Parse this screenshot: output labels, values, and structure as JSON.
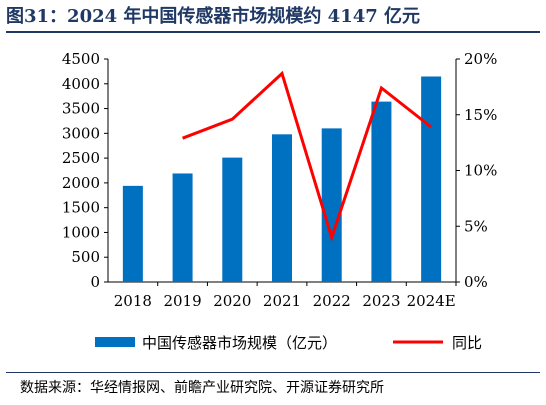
{
  "title": "图31：2024 年中国传感器市场规模约 4147 亿元",
  "source": "数据来源：华经情报网、前瞻产业研究院、开源证券研究所",
  "colors": {
    "bar": "#0070c0",
    "line": "#ff0000",
    "title": "#1f3864"
  },
  "chart_data": {
    "type": "bar",
    "categories": [
      "2018",
      "2019",
      "2020",
      "2021",
      "2022",
      "2023",
      "2024E"
    ],
    "series": [
      {
        "name": "中国传感器市场规模（亿元）",
        "type": "bar",
        "axis": "left",
        "values": [
          1940,
          2190,
          2510,
          2980,
          3100,
          3640,
          4147
        ]
      },
      {
        "name": "同比",
        "type": "line",
        "axis": "right",
        "values": [
          null,
          12.9,
          14.6,
          18.7,
          4.0,
          17.4,
          13.9
        ]
      }
    ],
    "y_left": {
      "min": 0,
      "max": 4500,
      "ticks": [
        "0",
        "500",
        "1000",
        "1500",
        "2000",
        "2500",
        "3000",
        "3500",
        "4000",
        "4500"
      ]
    },
    "y_right": {
      "min": 0,
      "max": 20,
      "ticks": [
        "0%",
        "5%",
        "10%",
        "15%",
        "20%"
      ]
    },
    "legend_position": "bottom",
    "grid": false
  }
}
